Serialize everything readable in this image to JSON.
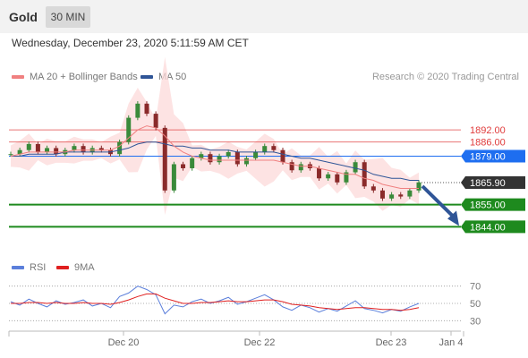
{
  "header": {
    "instrument": "Gold",
    "timeframe": "30 MIN"
  },
  "timestamp": "Wednesday, December 23, 2020 5:11:59 AM CET",
  "legend": {
    "ma20": "MA 20 + Bollinger Bands",
    "ma50": "MA 50",
    "ma20_color": "#f08080",
    "ma50_color": "#2f5597"
  },
  "credit": "Research © 2020 Trading Central",
  "rsi_legend": {
    "rsi": "RSI",
    "ma9": "9MA",
    "rsi_color": "#5b7fdb",
    "ma9_color": "#e02020"
  },
  "chart_data": [
    {
      "type": "line",
      "x_ticks": [
        "Dec 20",
        "Dec 22",
        "Dec 23",
        "Jan 4"
      ],
      "ylim": [
        1830,
        1912
      ],
      "grid": false,
      "levels": [
        {
          "label": "1892.00",
          "value": 1892.0,
          "style": "resistance",
          "color": "#e03c3c"
        },
        {
          "label": "1886.00",
          "value": 1886.0,
          "style": "resistance",
          "color": "#e03c3c"
        },
        {
          "label": "1879.00",
          "value": 1879.0,
          "style": "pivot",
          "color": "#1e6ef0"
        },
        {
          "label": "1865.90",
          "value": 1865.9,
          "style": "last",
          "color": "#333333"
        },
        {
          "label": "1855.00",
          "value": 1855.0,
          "style": "support",
          "color": "#1e8a1e"
        },
        {
          "label": "1844.00",
          "value": 1844.0,
          "style": "support",
          "color": "#1e8a1e"
        }
      ],
      "series": [
        {
          "name": "Price",
          "values": [
            1880,
            1882,
            1885,
            1881,
            1883,
            1880,
            1882,
            1884,
            1881,
            1883,
            1882,
            1880,
            1886,
            1898,
            1905,
            1900,
            1893,
            1862,
            1875,
            1873,
            1878,
            1880,
            1876,
            1879,
            1881,
            1875,
            1878,
            1881,
            1884,
            1882,
            1876,
            1872,
            1875,
            1873,
            1868,
            1870,
            1866,
            1871,
            1876,
            1864,
            1862,
            1858,
            1860,
            1859,
            1862,
            1866
          ]
        },
        {
          "name": "MA 50",
          "values": [
            1879,
            1879,
            1880,
            1880,
            1880,
            1880,
            1881,
            1881,
            1881,
            1881,
            1881,
            1881,
            1882,
            1883,
            1885,
            1886,
            1886,
            1885,
            1884,
            1884,
            1883,
            1883,
            1882,
            1882,
            1882,
            1881,
            1881,
            1881,
            1881,
            1881,
            1880,
            1879,
            1878,
            1878,
            1877,
            1876,
            1875,
            1874,
            1873,
            1872,
            1870,
            1869,
            1868,
            1868,
            1867,
            1867
          ]
        },
        {
          "name": "MA 20",
          "values": [
            1879,
            1880,
            1881,
            1881,
            1881,
            1881,
            1881,
            1882,
            1882,
            1882,
            1882,
            1882,
            1884,
            1888,
            1892,
            1894,
            1893,
            1889,
            1884,
            1881,
            1879,
            1878,
            1877,
            1877,
            1877,
            1877,
            1877,
            1877,
            1877,
            1877,
            1876,
            1875,
            1874,
            1874,
            1873,
            1872,
            1871,
            1870,
            1870,
            1868,
            1867,
            1865,
            1864,
            1863,
            1863,
            1863
          ]
        }
      ],
      "forecast": {
        "from": 1865.9,
        "to": 1844.0
      }
    },
    {
      "type": "line",
      "title": "RSI",
      "x_ticks": [
        "Dec 20",
        "Dec 22",
        "Dec 23",
        "Jan 4"
      ],
      "y_ticks": [
        70,
        50,
        30
      ],
      "ylim": [
        20,
        80
      ],
      "series": [
        {
          "name": "RSI",
          "values": [
            52,
            48,
            55,
            50,
            46,
            53,
            49,
            51,
            54,
            47,
            50,
            45,
            58,
            62,
            70,
            66,
            60,
            38,
            48,
            46,
            52,
            55,
            50,
            53,
            57,
            49,
            52,
            56,
            60,
            54,
            46,
            42,
            48,
            45,
            40,
            44,
            41,
            47,
            53,
            44,
            42,
            39,
            43,
            41,
            46,
            50
          ]
        },
        {
          "name": "9MA",
          "values": [
            50,
            50,
            51,
            51,
            50,
            51,
            50,
            50,
            51,
            50,
            50,
            49,
            51,
            54,
            58,
            61,
            61,
            56,
            53,
            50,
            50,
            51,
            51,
            52,
            53,
            52,
            52,
            53,
            54,
            54,
            52,
            49,
            48,
            47,
            45,
            44,
            43,
            44,
            45,
            45,
            44,
            43,
            43,
            42,
            43,
            45
          ]
        }
      ]
    }
  ]
}
